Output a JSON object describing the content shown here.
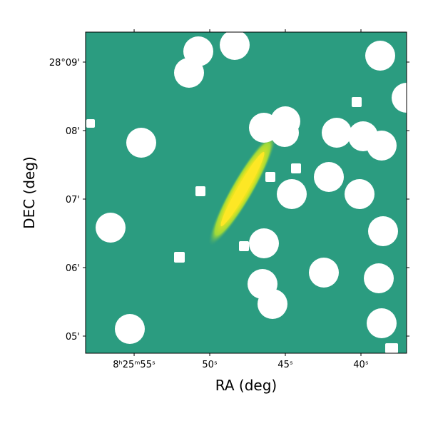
{
  "chart_data": {
    "type": "image",
    "xlabel": "RA (deg)",
    "ylabel": "DEC (deg)",
    "xlim": [
      58.21,
      36.98
    ],
    "xticks": [
      {
        "value": 55,
        "label": "8ʰ25ᵐ55ˢ"
      },
      {
        "value": 50,
        "label": "50ˢ"
      },
      {
        "value": 45,
        "label": "45ˢ"
      },
      {
        "value": 40,
        "label": "40ˢ"
      }
    ],
    "ylim": [
      4.75,
      9.4375
    ],
    "yticks": [
      {
        "value": 9,
        "label": "28°09'"
      },
      {
        "value": 8,
        "label": "08'"
      },
      {
        "value": 7,
        "label": "07'"
      },
      {
        "value": 6,
        "label": "06'"
      },
      {
        "value": 5,
        "label": "05'"
      }
    ]
  }
}
